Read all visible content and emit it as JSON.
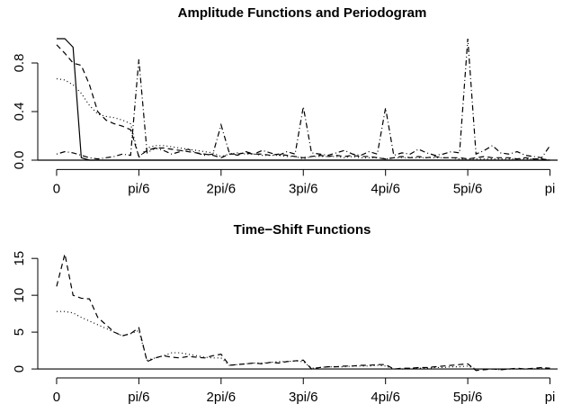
{
  "chart_data": [
    {
      "type": "line",
      "title": "Amplitude Functions and  Periodogram",
      "x": [
        0,
        0.0524,
        0.1047,
        0.1571,
        0.2094,
        0.2618,
        0.3142,
        0.3665,
        0.4189,
        0.4712,
        0.5236,
        0.576,
        0.6283,
        0.6807,
        0.733,
        0.7854,
        0.8378,
        0.8901,
        0.9425,
        0.9948,
        1.0472,
        1.0996,
        1.1519,
        1.2043,
        1.2566,
        1.309,
        1.3614,
        1.4137,
        1.4661,
        1.5184,
        1.5708,
        1.6232,
        1.6755,
        1.7279,
        1.7802,
        1.8326,
        1.885,
        1.9373,
        1.9897,
        2.042,
        2.0944,
        2.1468,
        2.1991,
        2.2515,
        2.3038,
        2.3562,
        2.4086,
        2.4609,
        2.5133,
        2.5656,
        2.618,
        2.6704,
        2.7227,
        2.7751,
        2.8274,
        2.8798,
        2.9322,
        2.9845,
        3.0369,
        3.0892,
        3.1416
      ],
      "series": [
        {
          "color": "#000000",
          "dash": "solid",
          "values": [
            1,
            1,
            0.93,
            0.02,
            0,
            0,
            0,
            0,
            0,
            0,
            0,
            0,
            0,
            0,
            0,
            0,
            0,
            0,
            0,
            0,
            0,
            0,
            0,
            0,
            0,
            0,
            0,
            0,
            0,
            0,
            0,
            0,
            0,
            0,
            0,
            0,
            0,
            0,
            0,
            0,
            0,
            0,
            0,
            0,
            0,
            0,
            0,
            0,
            0,
            0,
            0,
            0,
            0,
            0,
            0,
            0,
            0,
            0,
            0,
            0,
            0
          ]
        },
        {
          "color": "#000000",
          "dash": "dashed",
          "values": [
            0.95,
            0.88,
            0.8,
            0.78,
            0.62,
            0.4,
            0.33,
            0.3,
            0.28,
            0.25,
            0.03,
            0.08,
            0.1,
            0.1,
            0.09,
            0.08,
            0.07,
            0.06,
            0.05,
            0.04,
            0.02,
            0.05,
            0.05,
            0.06,
            0.05,
            0.05,
            0.04,
            0.05,
            0.04,
            0.03,
            0.02,
            0.03,
            0.04,
            0.03,
            0.04,
            0.03,
            0.04,
            0.03,
            0.03,
            0.02,
            0.01,
            0.02,
            0.03,
            0.02,
            0.03,
            0.02,
            0.03,
            0.02,
            0.02,
            0.02,
            0.01,
            0.02,
            0.03,
            0.02,
            0.02,
            0.02,
            0.01,
            0.02,
            0.01,
            0.01,
            0
          ]
        },
        {
          "color": "#000000",
          "dash": "dotted",
          "values": [
            0.67,
            0.66,
            0.62,
            0.55,
            0.45,
            0.38,
            0.36,
            0.35,
            0.33,
            0.3,
            0.02,
            0.1,
            0.12,
            0.12,
            0.11,
            0.1,
            0.09,
            0.08,
            0.07,
            0.06,
            0.03,
            0.05,
            0.06,
            0.05,
            0.05,
            0.04,
            0.04,
            0.04,
            0.03,
            0.03,
            0.01,
            0.03,
            0.03,
            0.03,
            0.03,
            0.02,
            0.03,
            0.02,
            0.02,
            0.02,
            0.01,
            0.02,
            0.02,
            0.02,
            0.02,
            0.02,
            0.02,
            0.02,
            0.02,
            0.01,
            0.01,
            0.01,
            0.01,
            0.01,
            0.01,
            0.01,
            0.01,
            0.01,
            0.01,
            0.01,
            0
          ]
        },
        {
          "color": "#000000",
          "dash": "dotdash",
          "values": [
            0.05,
            0.07,
            0.06,
            0.04,
            0.02,
            0.01,
            0.02,
            0.03,
            0.05,
            0.04,
            0.83,
            0.06,
            0.1,
            0.08,
            0.05,
            0.07,
            0.09,
            0.06,
            0.04,
            0.05,
            0.29,
            0.06,
            0.04,
            0.07,
            0.05,
            0.08,
            0.06,
            0.04,
            0.07,
            0.05,
            0.44,
            0.06,
            0.05,
            0.04,
            0.06,
            0.08,
            0.05,
            0.04,
            0.07,
            0.05,
            0.43,
            0.04,
            0.06,
            0.05,
            0.09,
            0.06,
            0.04,
            0.05,
            0.07,
            0.06,
            1.0,
            0.05,
            0.08,
            0.12,
            0.06,
            0.05,
            0.07,
            0.04,
            0.03,
            0.02,
            0.12
          ]
        }
      ],
      "hline": 0,
      "xlim": [
        -0.12,
        3.19
      ],
      "ylim": [
        -0.04,
        1.04
      ],
      "xticks": [
        0,
        {
          "value": 0.5235987755982988,
          "label": "pi/6"
        },
        {
          "value": 1.0471975511965976,
          "label": "2pi/6"
        },
        {
          "value": 1.5707963267948966,
          "label": "3pi/6"
        },
        {
          "value": 2.0943951023931953,
          "label": "4pi/6"
        },
        {
          "value": 2.6179938779914944,
          "label": "5pi/6"
        },
        {
          "value": 3.141592653589793,
          "label": "pi"
        }
      ],
      "yticks": [
        {
          "value": 0,
          "label": "0.0"
        },
        0.4,
        0.8
      ]
    },
    {
      "type": "line",
      "title": "Time−Shift Functions",
      "x": [
        0,
        0.0524,
        0.1047,
        0.1571,
        0.2094,
        0.2618,
        0.3142,
        0.3665,
        0.4189,
        0.4712,
        0.5236,
        0.576,
        0.6283,
        0.6807,
        0.733,
        0.7854,
        0.8378,
        0.8901,
        0.9425,
        0.9948,
        1.0472,
        1.0996,
        1.1519,
        1.2043,
        1.2566,
        1.309,
        1.3614,
        1.4137,
        1.4661,
        1.5184,
        1.5708,
        1.6232,
        1.6755,
        1.7279,
        1.7802,
        1.8326,
        1.885,
        1.9373,
        1.9897,
        2.042,
        2.0944,
        2.1468,
        2.1991,
        2.2515,
        2.3038,
        2.3562,
        2.4086,
        2.4609,
        2.5133,
        2.5656,
        2.618,
        2.6704,
        2.7227,
        2.7751,
        2.8274,
        2.8798,
        2.9322,
        2.9845,
        3.0369,
        3.0892,
        3.1416
      ],
      "series": [
        {
          "color": "#000000",
          "dash": "dashed",
          "values": [
            11.2,
            15.6,
            10,
            9.6,
            9.5,
            7,
            6,
            5,
            4.5,
            4.8,
            5.6,
            1,
            1.5,
            1.8,
            1.6,
            1.5,
            1.7,
            1.6,
            1.5,
            1.8,
            2.0,
            0.5,
            0.6,
            0.7,
            0.8,
            0.7,
            0.9,
            0.8,
            1.0,
            1.1,
            1.2,
            0,
            0.2,
            0.3,
            0.3,
            0.4,
            0.4,
            0.5,
            0.5,
            0.6,
            0.6,
            0,
            0.1,
            0.1,
            0.2,
            0.2,
            0.3,
            0.4,
            0.5,
            0.6,
            0.7,
            -0.2,
            -0.1,
            0,
            -0.1,
            0,
            0.1,
            0,
            0.1,
            0.2,
            0.1
          ]
        },
        {
          "color": "#000000",
          "dash": "dotted",
          "values": [
            7.8,
            7.8,
            7.6,
            7,
            6.5,
            6,
            5.5,
            5,
            4.5,
            4.8,
            5.2,
            1.2,
            1.5,
            1.8,
            2.2,
            2.2,
            2.0,
            1.8,
            1.6,
            1.5,
            1.5,
            0.5,
            0.6,
            0.7,
            0.8,
            0.8,
            0.9,
            1.0,
            1.0,
            1.1,
            1.0,
            0.1,
            0.2,
            0.3,
            0.3,
            0.3,
            0.4,
            0.4,
            0.4,
            0.5,
            0.4,
            0,
            0,
            0.1,
            0.1,
            0.1,
            0.2,
            0.2,
            0.3,
            0.3,
            0.4,
            0,
            0,
            0,
            -0.1,
            0,
            0,
            0,
            0,
            0.1,
            0.1
          ]
        }
      ],
      "hline": 0,
      "xlim": [
        -0.12,
        3.19
      ],
      "ylim": [
        -0.6,
        16
      ],
      "xticks": [
        0,
        {
          "value": 0.5235987755982988,
          "label": "pi/6"
        },
        {
          "value": 1.0471975511965976,
          "label": "2pi/6"
        },
        {
          "value": 1.5707963267948966,
          "label": "3pi/6"
        },
        {
          "value": 2.0943951023931953,
          "label": "4pi/6"
        },
        {
          "value": 2.6179938779914944,
          "label": "5pi/6"
        },
        {
          "value": 3.141592653589793,
          "label": "pi"
        }
      ],
      "yticks": [
        0,
        5,
        10,
        15
      ]
    }
  ]
}
